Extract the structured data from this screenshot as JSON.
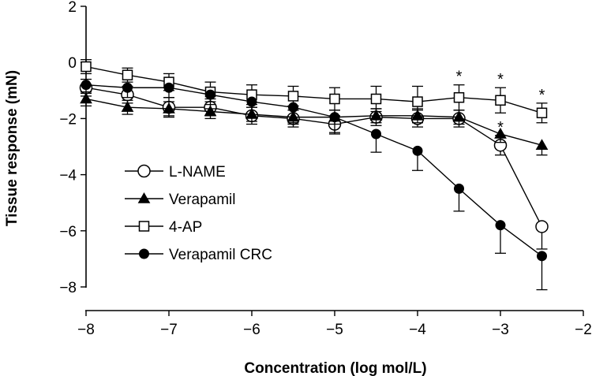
{
  "chart_data": {
    "type": "line",
    "xlabel": "Concentration (log mol/L)",
    "ylabel": "Tissue response (mN)",
    "xlim": [
      -8,
      -2
    ],
    "ylim": [
      -8,
      2
    ],
    "xticks": [
      -8,
      -7,
      -6,
      -5,
      -4,
      -3,
      -2
    ],
    "yticks": [
      -8,
      -6,
      -4,
      -2,
      0,
      2
    ],
    "xtick_labels": [
      "−8",
      "−7",
      "−6",
      "−5",
      "−4",
      "−3",
      "−2"
    ],
    "ytick_labels": [
      "−8",
      "−6",
      "−4",
      "−2",
      "0",
      "2"
    ],
    "x": [
      -8,
      -7.5,
      -7,
      -6.5,
      -6,
      -5.5,
      -5,
      -4.5,
      -4,
      -3.5,
      -3,
      -2.5
    ],
    "legend_position": "lower-left",
    "series": [
      {
        "name": "L-NAME",
        "marker": "circle-open",
        "values": [
          -0.9,
          -1.15,
          -1.6,
          -1.6,
          -1.9,
          -2.0,
          -2.2,
          -1.95,
          -2.0,
          -2.0,
          -2.95,
          -5.85
        ],
        "errors": [
          0.3,
          0.3,
          0.35,
          0.3,
          0.3,
          0.3,
          0.3,
          0.3,
          0.3,
          0.3,
          0.35,
          0.8
        ],
        "stars": [
          false,
          false,
          false,
          false,
          false,
          false,
          false,
          false,
          false,
          false,
          true,
          false
        ]
      },
      {
        "name": "Verapamil",
        "marker": "triangle-filled",
        "values": [
          -1.3,
          -1.6,
          -1.65,
          -1.75,
          -1.85,
          -1.95,
          -1.95,
          -1.9,
          -1.9,
          -1.95,
          -2.55,
          -2.95
        ],
        "errors": [
          0.25,
          0.25,
          0.25,
          0.25,
          0.25,
          0.25,
          0.25,
          0.25,
          0.25,
          0.25,
          0.3,
          0.35
        ],
        "stars": [
          false,
          false,
          false,
          false,
          false,
          false,
          false,
          false,
          false,
          false,
          false,
          false
        ]
      },
      {
        "name": "4-AP",
        "marker": "square-open",
        "values": [
          -0.15,
          -0.45,
          -0.7,
          -1.05,
          -1.15,
          -1.2,
          -1.3,
          -1.3,
          -1.4,
          -1.25,
          -1.35,
          -1.8
        ],
        "errors": [
          0.25,
          0.25,
          0.3,
          0.35,
          0.35,
          0.35,
          0.4,
          0.45,
          0.55,
          0.45,
          0.45,
          0.35
        ],
        "stars": [
          false,
          false,
          false,
          false,
          false,
          false,
          false,
          false,
          false,
          true,
          true,
          true
        ]
      },
      {
        "name": "Verapamil CRC",
        "marker": "circle-filled",
        "values": [
          -0.8,
          -0.9,
          -0.9,
          -1.15,
          -1.4,
          -1.6,
          -1.95,
          -2.55,
          -3.15,
          -4.5,
          -5.8,
          -6.9
        ],
        "errors": [
          0.3,
          0.35,
          0.35,
          0.5,
          0.55,
          0.55,
          0.6,
          0.65,
          0.7,
          0.8,
          1.0,
          1.2
        ],
        "stars": [
          false,
          false,
          false,
          false,
          false,
          false,
          false,
          false,
          false,
          false,
          false,
          false
        ]
      }
    ],
    "significance_marker": "*"
  }
}
